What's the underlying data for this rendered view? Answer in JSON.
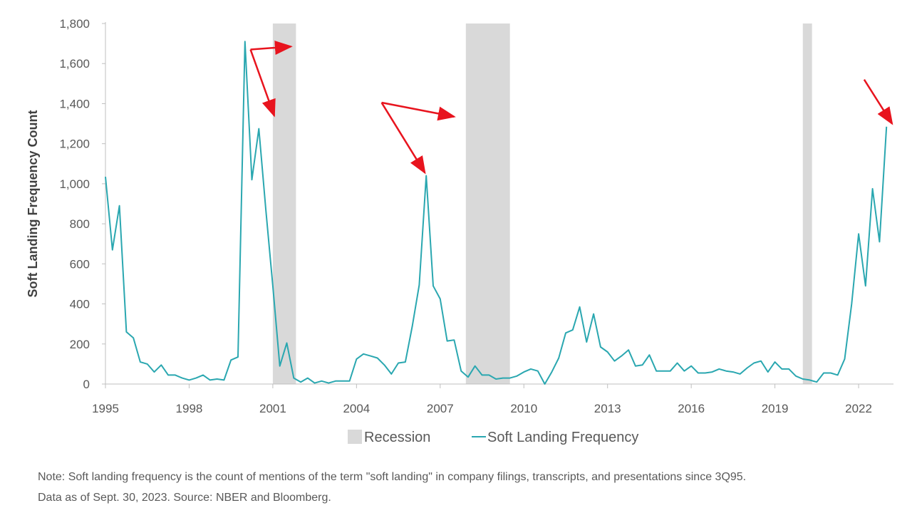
{
  "chart_data": {
    "type": "line",
    "ylabel": "Soft Landing Frequency Count",
    "ylim": [
      0,
      1800
    ],
    "yticks": [
      "0",
      "200",
      "400",
      "600",
      "800",
      "1,000",
      "1,200",
      "1,400",
      "1,600",
      "1,800"
    ],
    "xlim": [
      1995.0,
      2023.25
    ],
    "xticks": [
      "1995",
      "1998",
      "2001",
      "2004",
      "2007",
      "2010",
      "2013",
      "2016",
      "2019",
      "2022"
    ],
    "grid": false,
    "legend_position": "bottom",
    "legend": {
      "recession_label": "Recession",
      "series_label": "Soft Landing Frequency"
    },
    "series": [
      {
        "name": "Soft Landing Frequency",
        "color": "#2aa7b0",
        "x": [
          1995.0,
          1995.25,
          1995.5,
          1995.75,
          1996.0,
          1996.25,
          1996.5,
          1996.75,
          1997.0,
          1997.25,
          1997.5,
          1997.75,
          1998.0,
          1998.25,
          1998.5,
          1998.75,
          1999.0,
          1999.25,
          1999.5,
          1999.75,
          2000.0,
          2000.25,
          2000.5,
          2000.75,
          2001.0,
          2001.25,
          2001.5,
          2001.75,
          2002.0,
          2002.25,
          2002.5,
          2002.75,
          2003.0,
          2003.25,
          2003.5,
          2003.75,
          2004.0,
          2004.25,
          2004.5,
          2004.75,
          2005.0,
          2005.25,
          2005.5,
          2005.75,
          2006.0,
          2006.25,
          2006.5,
          2006.75,
          2007.0,
          2007.25,
          2007.5,
          2007.75,
          2008.0,
          2008.25,
          2008.5,
          2008.75,
          2009.0,
          2009.25,
          2009.5,
          2009.75,
          2010.0,
          2010.25,
          2010.5,
          2010.75,
          2011.0,
          2011.25,
          2011.5,
          2011.75,
          2012.0,
          2012.25,
          2012.5,
          2012.75,
          2013.0,
          2013.25,
          2013.5,
          2013.75,
          2014.0,
          2014.25,
          2014.5,
          2014.75,
          2015.0,
          2015.25,
          2015.5,
          2015.75,
          2016.0,
          2016.25,
          2016.5,
          2016.75,
          2017.0,
          2017.25,
          2017.5,
          2017.75,
          2018.0,
          2018.25,
          2018.5,
          2018.75,
          2019.0,
          2019.25,
          2019.5,
          2019.75,
          2020.0,
          2020.25,
          2020.5,
          2020.75,
          2021.0,
          2021.25,
          2021.5,
          2021.75,
          2022.0,
          2022.25,
          2022.5,
          2022.75,
          2023.0
        ],
        "y": [
          1035,
          670,
          890,
          260,
          230,
          110,
          100,
          60,
          95,
          45,
          45,
          30,
          20,
          30,
          45,
          20,
          25,
          20,
          120,
          135,
          1710,
          1020,
          1275,
          870,
          490,
          90,
          205,
          30,
          10,
          30,
          5,
          15,
          5,
          15,
          15,
          15,
          125,
          150,
          140,
          130,
          95,
          50,
          105,
          110,
          290,
          495,
          1040,
          490,
          425,
          215,
          220,
          65,
          35,
          90,
          45,
          45,
          25,
          30,
          30,
          40,
          60,
          75,
          65,
          0,
          60,
          130,
          255,
          270,
          385,
          210,
          350,
          185,
          160,
          115,
          140,
          170,
          90,
          95,
          145,
          65,
          65,
          65,
          105,
          65,
          90,
          55,
          55,
          60,
          75,
          65,
          60,
          50,
          80,
          105,
          115,
          60,
          110,
          75,
          75,
          40,
          25,
          20,
          10,
          55,
          55,
          45,
          125,
          400,
          750,
          490,
          975,
          710,
          1285
        ]
      }
    ],
    "recessions": [
      {
        "start": 2001.0,
        "end": 2001.83
      },
      {
        "start": 2007.92,
        "end": 2009.5
      },
      {
        "start": 2020.0,
        "end": 2020.33
      }
    ],
    "annotations": {
      "arrow_color": "#e8141e",
      "arrows": [
        {
          "from": [
            2000.2,
            1670
          ],
          "to": [
            2001.65,
            1685
          ]
        },
        {
          "from": [
            2000.2,
            1670
          ],
          "to": [
            2001.05,
            1340
          ]
        },
        {
          "from": [
            2004.9,
            1405
          ],
          "to": [
            2007.5,
            1335
          ]
        },
        {
          "from": [
            2004.9,
            1405
          ],
          "to": [
            2006.45,
            1055
          ]
        },
        {
          "from": [
            2022.2,
            1520
          ],
          "to": [
            2023.2,
            1300
          ]
        }
      ]
    },
    "recession_color": "#d9d9d9"
  },
  "note": {
    "line1": "Note: Soft landing frequency is the count of mentions of the term \"soft landing\" in company filings, transcripts, and presentations since 3Q95.",
    "line2": "Data as of Sept. 30, 2023. Source: NBER and Bloomberg."
  }
}
